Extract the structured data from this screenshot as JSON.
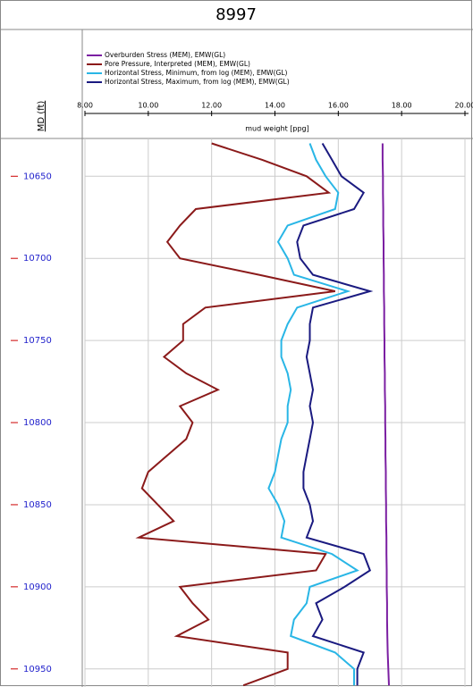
{
  "chart_data": {
    "type": "line",
    "title": "8997",
    "ylabel": "MD (ft)",
    "xlabel": "mud weight [ppg]",
    "y": [
      10630,
      10640,
      10650,
      10660,
      10670,
      10680,
      10690,
      10700,
      10710,
      10720,
      10730,
      10740,
      10750,
      10760,
      10770,
      10780,
      10790,
      10800,
      10810,
      10820,
      10830,
      10840,
      10850,
      10860,
      10870,
      10880,
      10890,
      10900,
      10910,
      10920,
      10930,
      10940,
      10950,
      10960
    ],
    "ylim": [
      10627,
      10961
    ],
    "yticks": [
      10650,
      10700,
      10750,
      10800,
      10850,
      10900,
      10950
    ],
    "xlim": [
      8,
      20
    ],
    "xticks": [
      {
        "value": 8,
        "label": "8.00"
      },
      {
        "value": 10,
        "label": "10.00"
      },
      {
        "value": 12,
        "label": "12.00"
      },
      {
        "value": 14,
        "label": "14.00"
      },
      {
        "value": 16,
        "label": "16.00"
      },
      {
        "value": 18,
        "label": "18.00"
      },
      {
        "value": 20,
        "label": "20.00"
      }
    ],
    "grid": true,
    "y_inverted": true,
    "series": [
      {
        "name": "Overburden Stress (MEM), EMW(GL)",
        "color": "#7b1fa2",
        "values": [
          17.4,
          17.4,
          17.41,
          17.41,
          17.42,
          17.42,
          17.43,
          17.43,
          17.44,
          17.44,
          17.45,
          17.45,
          17.46,
          17.46,
          17.47,
          17.47,
          17.48,
          17.48,
          17.49,
          17.49,
          17.5,
          17.5,
          17.51,
          17.51,
          17.52,
          17.52,
          17.53,
          17.53,
          17.54,
          17.54,
          17.55,
          17.56,
          17.58,
          17.6
        ]
      },
      {
        "name": "Pore Pressure, Interpreted (MEM), EMW(GL)",
        "color": "#8b1a1a",
        "values": [
          12.0,
          13.6,
          15.0,
          15.7,
          11.5,
          11.0,
          10.6,
          11.0,
          13.5,
          15.9,
          11.8,
          11.1,
          11.1,
          10.5,
          11.2,
          12.2,
          11.0,
          11.4,
          11.2,
          10.6,
          10.0,
          9.8,
          10.3,
          10.8,
          9.7,
          15.6,
          15.3,
          11.0,
          11.4,
          11.9,
          10.9,
          14.4,
          14.4,
          13.0
        ]
      },
      {
        "name": "Horizontal Stress, Minimum, from log (MEM), EMW(GL)",
        "color": "#29b6e6",
        "values": [
          15.1,
          15.3,
          15.6,
          16.0,
          15.9,
          14.4,
          14.1,
          14.4,
          14.6,
          16.3,
          14.7,
          14.4,
          14.2,
          14.2,
          14.4,
          14.5,
          14.4,
          14.4,
          14.2,
          14.1,
          14.0,
          13.8,
          14.1,
          14.3,
          14.2,
          15.8,
          16.6,
          15.1,
          15.0,
          14.6,
          14.5,
          15.9,
          16.5,
          16.5
        ]
      },
      {
        "name": "Horizontal Stress, Maximum, from log (MEM), EMW(GL)",
        "color": "#1a1a80",
        "values": [
          15.5,
          15.8,
          16.1,
          16.8,
          16.5,
          14.9,
          14.7,
          14.8,
          15.2,
          17.0,
          15.2,
          15.1,
          15.1,
          15.0,
          15.1,
          15.2,
          15.1,
          15.2,
          15.1,
          15.0,
          14.9,
          14.9,
          15.1,
          15.2,
          15.0,
          16.8,
          17.0,
          16.2,
          15.3,
          15.5,
          15.2,
          16.8,
          16.6,
          16.6
        ]
      }
    ]
  }
}
